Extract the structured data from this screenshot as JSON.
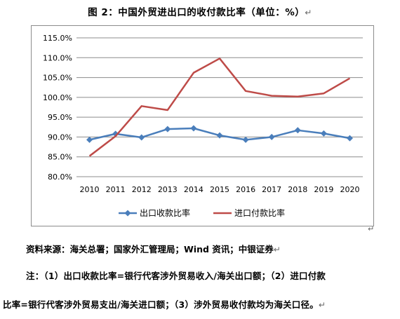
{
  "title": "图 2：中国外贸进出口的收付款比率（单位：%）",
  "paragraph_mark": "↵",
  "chart_data": {
    "type": "line",
    "categories": [
      "2010",
      "2011",
      "2012",
      "2013",
      "2014",
      "2015",
      "2016",
      "2017",
      "2018",
      "2019",
      "2020"
    ],
    "series": [
      {
        "name": "出口收款比率",
        "color": "#4a7ebb",
        "marker": "diamond",
        "values": [
          89.3,
          90.8,
          89.9,
          92.0,
          92.2,
          90.4,
          89.3,
          90.0,
          91.7,
          90.9,
          89.7
        ]
      },
      {
        "name": "进口付款比率",
        "color": "#be4b48",
        "marker": "none",
        "values": [
          85.2,
          90.2,
          97.8,
          96.8,
          106.2,
          109.8,
          101.6,
          100.4,
          100.2,
          101.0,
          104.8
        ]
      }
    ],
    "ylim": [
      80,
      115
    ],
    "yticks": [
      80,
      85,
      90,
      95,
      100,
      105,
      110,
      115
    ],
    "ytick_labels": [
      "80.0%",
      "85.0%",
      "90.0%",
      "95.0%",
      "100.0%",
      "105.0%",
      "110.0%",
      "115.0%"
    ],
    "grid": true,
    "legend_position": "bottom"
  },
  "source": "资料来源：海关总署；国家外汇管理局；Wind 资讯；中银证券",
  "note_line1": "注：（1）出口收款比率=银行代客涉外贸易收入/海关出口额；（2）进口付款",
  "note_line2": "比率=银行代客涉外贸易支出/海关进口额；（3）涉外贸易收付款均为海关口径。"
}
